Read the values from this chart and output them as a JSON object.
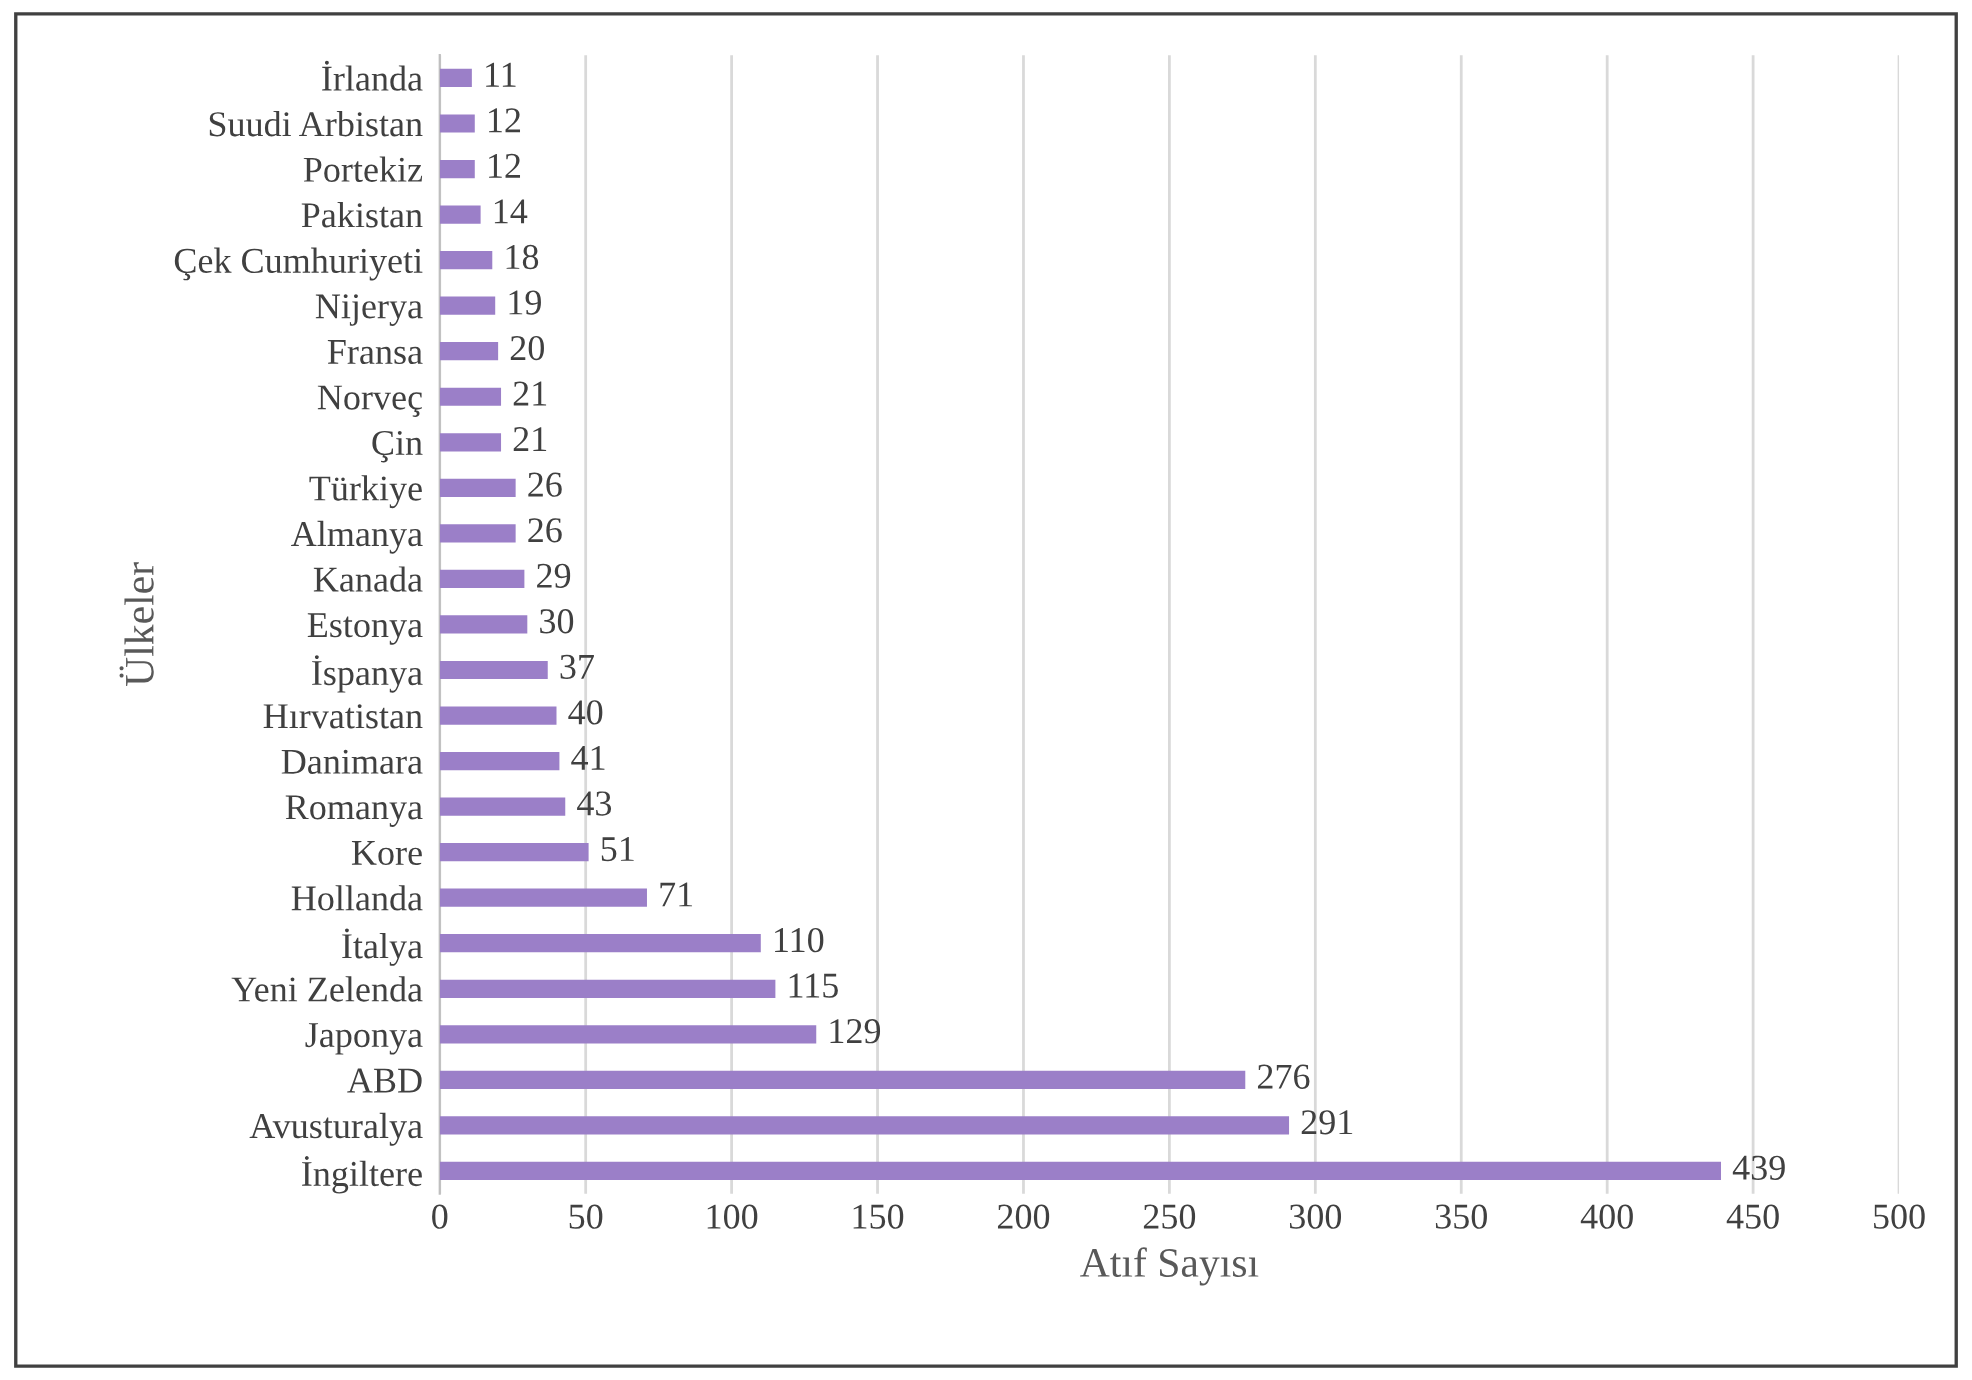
{
  "chart_data": {
    "type": "bar",
    "orientation": "horizontal",
    "xlabel": "Atıf Sayısı",
    "ylabel": "Ülkeler",
    "categories": [
      "İrlanda",
      "Suudi Arbistan",
      "Portekiz",
      "Pakistan",
      "Çek Cumhuriyeti",
      "Nijerya",
      "Fransa",
      "Norveç",
      "Çin",
      "Türkiye",
      "Almanya",
      "Kanada",
      "Estonya",
      "İspanya",
      "Hırvatistan",
      "Danimara",
      "Romanya",
      "Kore",
      "Hollanda",
      "İtalya",
      "Yeni Zelenda",
      "Japonya",
      "ABD",
      "Avusturalya",
      "İngiltere"
    ],
    "values": [
      11,
      12,
      12,
      14,
      18,
      19,
      20,
      21,
      21,
      26,
      26,
      29,
      30,
      37,
      40,
      41,
      43,
      51,
      71,
      110,
      115,
      129,
      276,
      291,
      439
    ],
    "color": "#9b7fc8",
    "xlim": [
      0,
      500
    ],
    "xticks": [
      0,
      50,
      100,
      150,
      200,
      250,
      300,
      350,
      400,
      450,
      500
    ],
    "grid": "x",
    "data_labels": true
  }
}
